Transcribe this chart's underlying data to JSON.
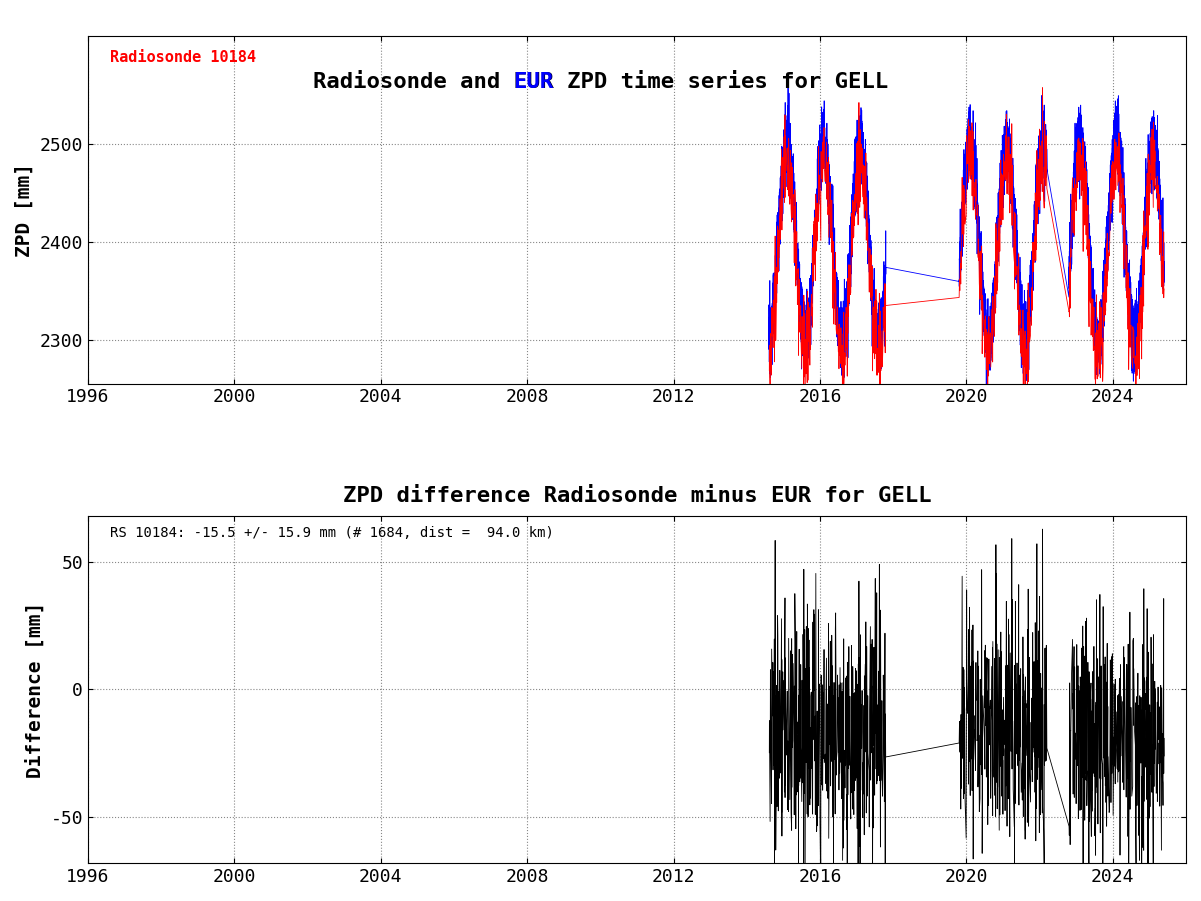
{
  "title1_part1": "Radiosonde and ",
  "title1_eur": "EUR",
  "title1_part2": " ZPD time series for GELL",
  "title2": "ZPD difference Radiosonde minus EUR for GELL",
  "ylabel1": "ZPD [mm]",
  "ylabel2": "Difference [mm]",
  "legend_label": "Radiosonde 10184",
  "annotation": "RS 10184: -15.5 +/- 15.9 mm (# 1684, dist =  94.0 km)",
  "xlim": [
    1996,
    2026
  ],
  "ylim1": [
    2255,
    2610
  ],
  "ylim2": [
    -68,
    68
  ],
  "yticks1": [
    2300,
    2400,
    2500
  ],
  "yticks2": [
    -50,
    0,
    50
  ],
  "xticks": [
    1996,
    2000,
    2004,
    2008,
    2012,
    2016,
    2020,
    2024
  ],
  "title_fontsize": 16,
  "axis_fontsize": 14,
  "tick_fontsize": 13,
  "annotation_fontsize": 10,
  "legend_fontsize": 11,
  "red_color": "#FF0000",
  "blue_color": "#0000FF",
  "black_color": "#000000",
  "background_color": "#FFFFFF",
  "grid_color": "#888888"
}
